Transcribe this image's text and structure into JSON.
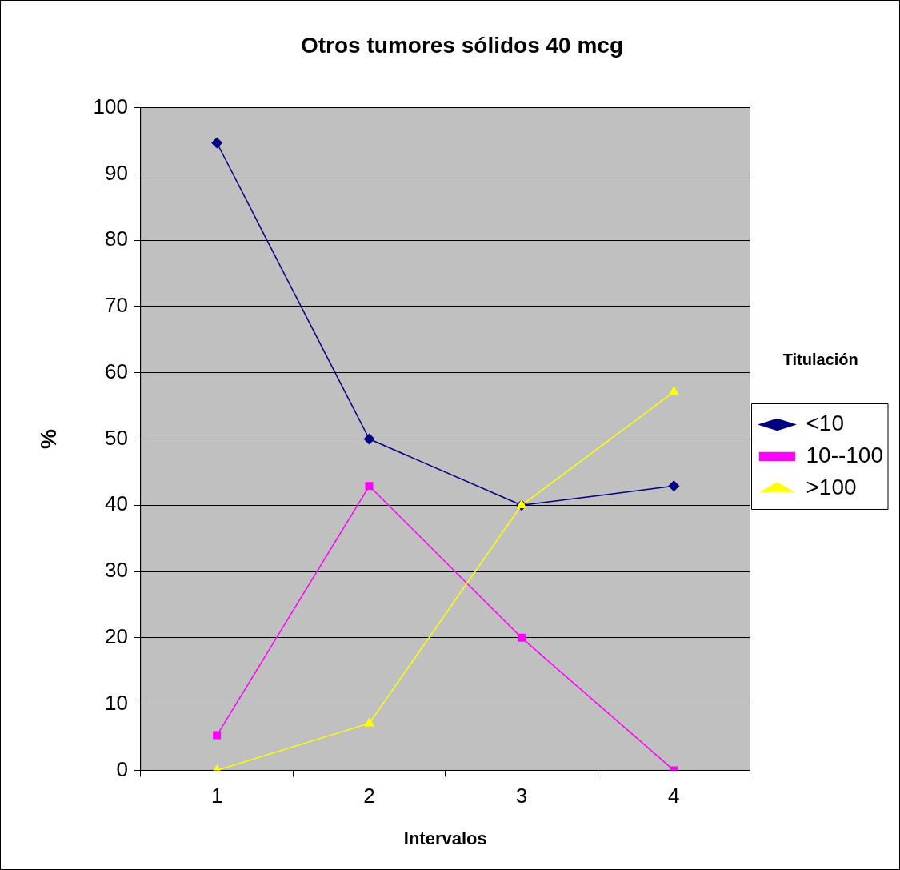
{
  "chart_data": {
    "type": "line",
    "title": "Otros tumores sólidos 40 mcg",
    "xlabel": "Intervalos",
    "ylabel": "%",
    "legend_title": "Titulación",
    "legend": "right",
    "grid": "y",
    "categories": [
      "1",
      "2",
      "3",
      "4"
    ],
    "ylim": [
      0,
      100
    ],
    "yticks": [
      0,
      10,
      20,
      30,
      40,
      50,
      60,
      70,
      80,
      90,
      100
    ],
    "series": [
      {
        "name": "<10",
        "color": "#000080",
        "marker": "diamond",
        "values": [
          94.7,
          50,
          40,
          42.9
        ]
      },
      {
        "name": "10--100",
        "color": "#ff00ff",
        "marker": "square",
        "values": [
          5.3,
          42.9,
          20,
          0
        ]
      },
      {
        "name": ">100",
        "color": "#ffff00",
        "marker": "triangle",
        "values": [
          0,
          7.1,
          40,
          57.1
        ]
      }
    ]
  }
}
